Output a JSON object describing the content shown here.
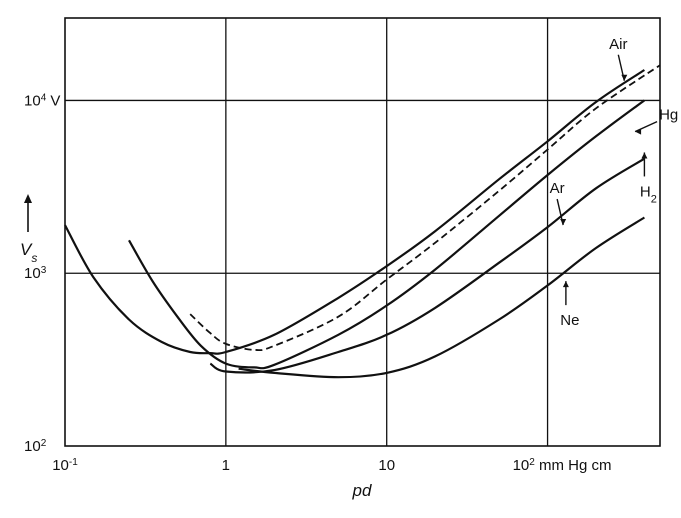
{
  "chart_data": {
    "type": "line",
    "x_scale": "log",
    "y_scale": "log",
    "xlim": [
      0.1,
      500
    ],
    "ylim": [
      100,
      30000
    ],
    "grid": true,
    "x_ticks": [
      {
        "value": 0.1,
        "label": "10",
        "sup": "-1",
        "suffix": ""
      },
      {
        "value": 1,
        "label": "1",
        "sup": "",
        "suffix": ""
      },
      {
        "value": 10,
        "label": "10",
        "sup": "",
        "suffix": ""
      },
      {
        "value": 100,
        "label": "10",
        "sup": "2",
        "suffix": " mm Hg cm"
      }
    ],
    "y_ticks": [
      {
        "value": 100,
        "label": "10",
        "sup": "2",
        "suffix": ""
      },
      {
        "value": 1000,
        "label": "10",
        "sup": "3",
        "suffix": ""
      },
      {
        "value": 10000,
        "label": "10",
        "sup": "4",
        "suffix": " V"
      }
    ],
    "xlabel": "pd",
    "ylabel": {
      "main": "V",
      "sub": "s"
    },
    "series": [
      {
        "name": "Air",
        "style": "solid",
        "points": [
          [
            0.1,
            1900
          ],
          [
            0.15,
            950
          ],
          [
            0.25,
            540
          ],
          [
            0.4,
            400
          ],
          [
            0.6,
            350
          ],
          [
            0.8,
            345
          ],
          [
            1,
            350
          ],
          [
            2,
            440
          ],
          [
            5,
            720
          ],
          [
            10,
            1100
          ],
          [
            20,
            1750
          ],
          [
            50,
            3500
          ],
          [
            100,
            5800
          ],
          [
            200,
            9800
          ],
          [
            400,
            15000
          ]
        ]
      },
      {
        "name": "Hg",
        "style": "dashed",
        "points": [
          [
            0.6,
            580
          ],
          [
            0.8,
            450
          ],
          [
            1,
            390
          ],
          [
            1.5,
            360
          ],
          [
            2,
            380
          ],
          [
            5,
            560
          ],
          [
            10,
            920
          ],
          [
            20,
            1500
          ],
          [
            50,
            3000
          ],
          [
            100,
            5200
          ],
          [
            200,
            9000
          ],
          [
            500,
            16000
          ]
        ]
      },
      {
        "name": "H",
        "name_sub": "2",
        "style": "solid",
        "points": [
          [
            0.25,
            1550
          ],
          [
            0.35,
            900
          ],
          [
            0.5,
            560
          ],
          [
            0.7,
            380
          ],
          [
            1,
            300
          ],
          [
            1.5,
            285
          ],
          [
            2,
            295
          ],
          [
            5,
            440
          ],
          [
            10,
            650
          ],
          [
            20,
            1050
          ],
          [
            50,
            2150
          ],
          [
            100,
            3700
          ],
          [
            200,
            6200
          ],
          [
            400,
            10000
          ]
        ]
      },
      {
        "name": "Ar",
        "style": "solid",
        "points": [
          [
            0.8,
            300
          ],
          [
            1,
            270
          ],
          [
            2,
            275
          ],
          [
            5,
            350
          ],
          [
            10,
            440
          ],
          [
            20,
            630
          ],
          [
            50,
            1150
          ],
          [
            100,
            1850
          ],
          [
            200,
            3100
          ],
          [
            400,
            4600
          ]
        ]
      },
      {
        "name": "Ne",
        "style": "solid",
        "points": [
          [
            1.2,
            280
          ],
          [
            2,
            265
          ],
          [
            5,
            250
          ],
          [
            10,
            265
          ],
          [
            20,
            330
          ],
          [
            50,
            540
          ],
          [
            100,
            850
          ],
          [
            200,
            1400
          ],
          [
            400,
            2100
          ]
        ]
      }
    ],
    "annotations": [
      {
        "text": "Air",
        "sub": "",
        "target": [
          300,
          13000
        ],
        "arrow": "down"
      },
      {
        "text": "Hg",
        "sub": "",
        "target": [
          350,
          6600
        ],
        "arrow": "left"
      },
      {
        "text": "H",
        "sub": "2",
        "target": [
          400,
          5000
        ],
        "arrow": "up"
      },
      {
        "text": "Ar",
        "sub": "",
        "target": [
          125,
          1900
        ],
        "arrow": "down"
      },
      {
        "text": "Ne",
        "sub": "",
        "target": [
          130,
          900
        ],
        "arrow": "up"
      }
    ]
  }
}
